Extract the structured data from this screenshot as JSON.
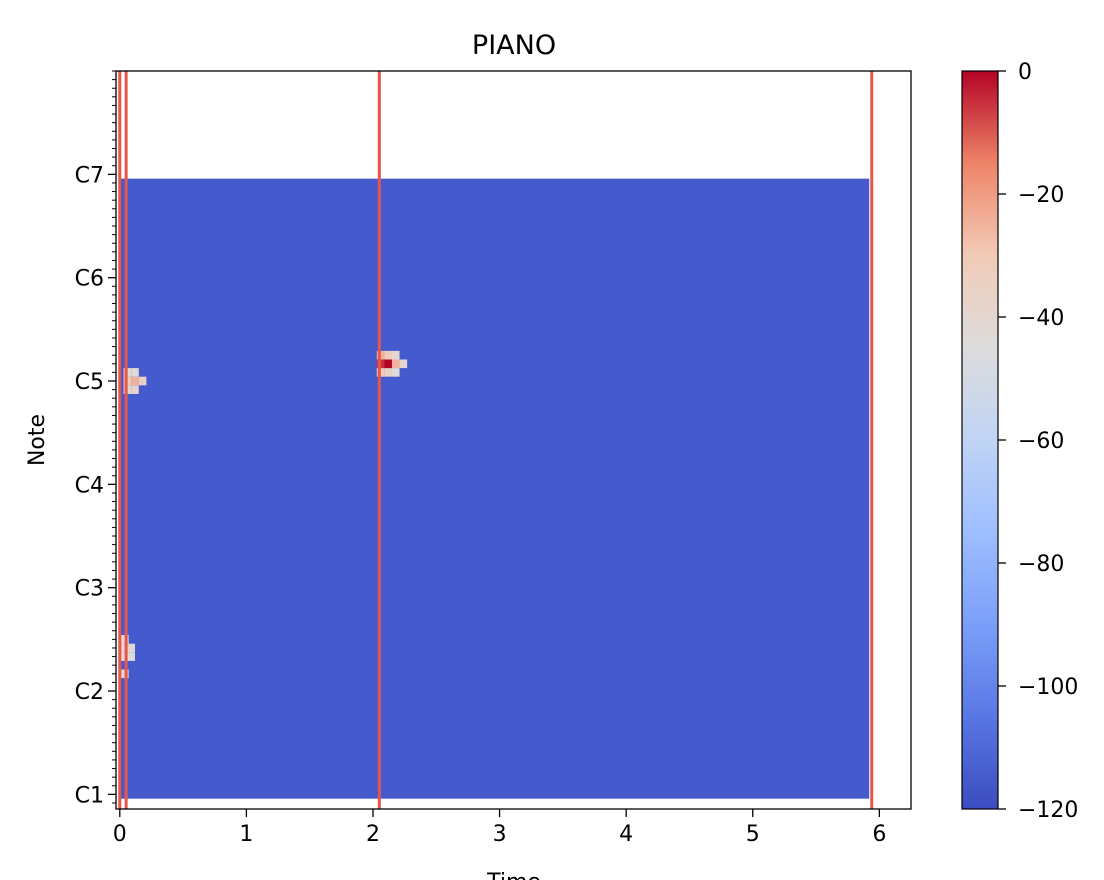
{
  "chart_data": {
    "type": "heatmap",
    "title": "PIANO",
    "xlabel": "Time",
    "ylabel": "Note",
    "xlim": [
      -0.03,
      6.25
    ],
    "ylim": [
      22.3,
      108.0
    ],
    "x_ticks": [
      0,
      1,
      2,
      3,
      4,
      5,
      6
    ],
    "x_tick_labels": [
      "0",
      "1",
      "2",
      "3",
      "4",
      "5",
      "6"
    ],
    "y_ticks": [
      24,
      36,
      48,
      60,
      72,
      84,
      96
    ],
    "y_tick_labels": [
      "C1",
      "C2",
      "C3",
      "C4",
      "C5",
      "C6",
      "C7"
    ],
    "y_minor_tick_step": 1,
    "background_block": {
      "x_range": [
        0,
        5.92
      ],
      "note_range": [
        23.5,
        95.5
      ],
      "value": -115
    },
    "note_cells": [
      {
        "time": 0.06,
        "note": 71,
        "value": -40
      },
      {
        "time": 0.12,
        "note": 71,
        "value": -38
      },
      {
        "time": 0.06,
        "note": 72,
        "value": -30
      },
      {
        "time": 0.12,
        "note": 72,
        "value": -25
      },
      {
        "time": 0.18,
        "note": 72,
        "value": -35
      },
      {
        "time": 0.06,
        "note": 73,
        "value": -40
      },
      {
        "time": 0.12,
        "note": 73,
        "value": -42
      },
      {
        "time": 0.04,
        "note": 40,
        "value": -42
      },
      {
        "time": 0.09,
        "note": 40,
        "value": -45
      },
      {
        "time": 0.04,
        "note": 41,
        "value": -40
      },
      {
        "time": 0.09,
        "note": 41,
        "value": -40
      },
      {
        "time": 0.04,
        "note": 42,
        "value": -45
      },
      {
        "time": 0.04,
        "note": 38,
        "value": -40
      },
      {
        "time": 2.06,
        "note": 73,
        "value": -30
      },
      {
        "time": 2.12,
        "note": 73,
        "value": -35
      },
      {
        "time": 2.18,
        "note": 73,
        "value": -45
      },
      {
        "time": 2.06,
        "note": 74,
        "value": -5
      },
      {
        "time": 2.12,
        "note": 74,
        "value": 0
      },
      {
        "time": 2.18,
        "note": 74,
        "value": -25
      },
      {
        "time": 2.24,
        "note": 74,
        "value": -40
      },
      {
        "time": 2.06,
        "note": 75,
        "value": -25
      },
      {
        "time": 2.12,
        "note": 75,
        "value": -30
      },
      {
        "time": 2.18,
        "note": 75,
        "value": -40
      }
    ],
    "onset_lines": [
      0.0,
      0.05,
      2.05,
      5.94
    ],
    "colorbar": {
      "min": -120,
      "max": 0,
      "ticks": [
        0,
        -20,
        -40,
        -60,
        -80,
        -100,
        -120
      ],
      "tick_labels": [
        "0",
        "−20",
        "−40",
        "−60",
        "−80",
        "−100",
        "−120"
      ],
      "colormap": "coolwarm"
    },
    "colors": {
      "onset_line": "#e8564a",
      "axes": "#000000"
    }
  }
}
